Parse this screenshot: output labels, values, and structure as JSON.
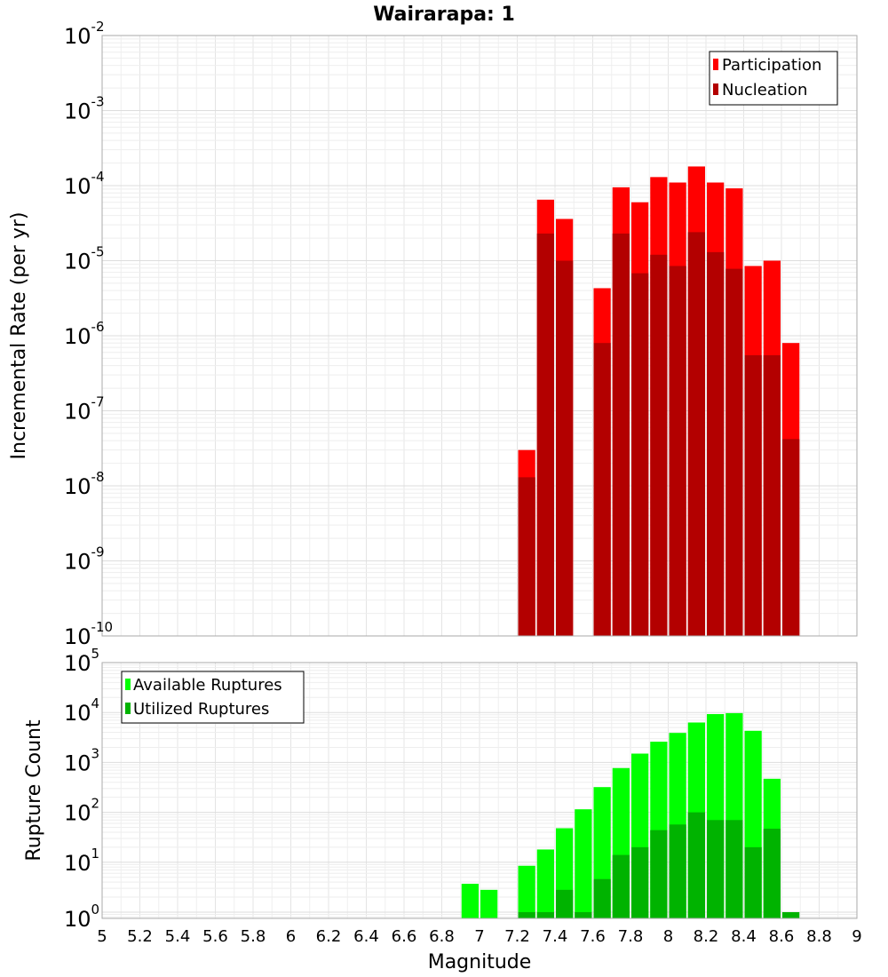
{
  "chart_data": [
    {
      "type": "bar",
      "title": "Wairarapa: 1",
      "xlabel": "",
      "ylabel": "Incremental Rate (per yr)",
      "yscale": "log",
      "ylim": [
        1e-10,
        0.01
      ],
      "xlim": [
        5,
        9
      ],
      "grid": true,
      "legend_position": "top-right",
      "bin_width": 0.1,
      "series": [
        {
          "name": "Participation",
          "color": "#ff0000",
          "x": [
            7.25,
            7.35,
            7.45,
            7.65,
            7.75,
            7.85,
            7.95,
            8.05,
            8.15,
            8.25,
            8.35,
            8.45,
            8.55,
            8.65
          ],
          "values": [
            3e-08,
            6.5e-05,
            3.6e-05,
            4.3e-06,
            9.5e-05,
            6e-05,
            0.00013,
            0.00011,
            0.00018,
            0.00011,
            9.2e-05,
            8.5e-06,
            1e-05,
            8e-07
          ]
        },
        {
          "name": "Nucleation",
          "color": "#b30000",
          "x": [
            7.25,
            7.35,
            7.45,
            7.65,
            7.75,
            7.85,
            7.95,
            8.05,
            8.15,
            8.25,
            8.35,
            8.45,
            8.55,
            8.65
          ],
          "values": [
            1.3e-08,
            2.3e-05,
            1e-05,
            8e-07,
            2.3e-05,
            6.8e-06,
            1.2e-05,
            8.5e-06,
            2.4e-05,
            1.3e-05,
            7.8e-06,
            5.5e-07,
            5.5e-07,
            4.2e-08
          ]
        }
      ]
    },
    {
      "type": "bar",
      "title": "",
      "xlabel": "Magnitude",
      "ylabel": "Rupture Count",
      "yscale": "log",
      "ylim": [
        0.75,
        100000
      ],
      "xlim": [
        5,
        9
      ],
      "grid": true,
      "legend_position": "top-left",
      "bin_width": 0.1,
      "x_ticks": [
        "5",
        "5.2",
        "5.4",
        "5.6",
        "5.8",
        "6",
        "6.2",
        "6.4",
        "6.6",
        "6.8",
        "7",
        "7.2",
        "7.4",
        "7.6",
        "7.8",
        "8",
        "8.2",
        "8.4",
        "8.6",
        "8.8",
        "9"
      ],
      "series": [
        {
          "name": "Available Ruptures",
          "color": "#00ff00",
          "x": [
            6.95,
            7.05,
            7.25,
            7.35,
            7.45,
            7.55,
            7.65,
            7.75,
            7.85,
            7.95,
            8.05,
            8.15,
            8.25,
            8.35,
            8.45,
            8.55
          ],
          "values": [
            3.7,
            2.8,
            8.5,
            18,
            48,
            115,
            320,
            770,
            1500,
            2600,
            3900,
            6300,
            9300,
            9700,
            4300,
            470
          ]
        },
        {
          "name": "Utilized Ruptures",
          "color": "#00b300",
          "x": [
            7.25,
            7.35,
            7.45,
            7.55,
            7.65,
            7.75,
            7.85,
            7.95,
            8.05,
            8.15,
            8.25,
            8.35,
            8.45,
            8.55,
            8.65
          ],
          "values": [
            1,
            1,
            2.8,
            1,
            4.6,
            14,
            20,
            44,
            57,
            100,
            70,
            70,
            20,
            47,
            1
          ]
        }
      ]
    }
  ]
}
